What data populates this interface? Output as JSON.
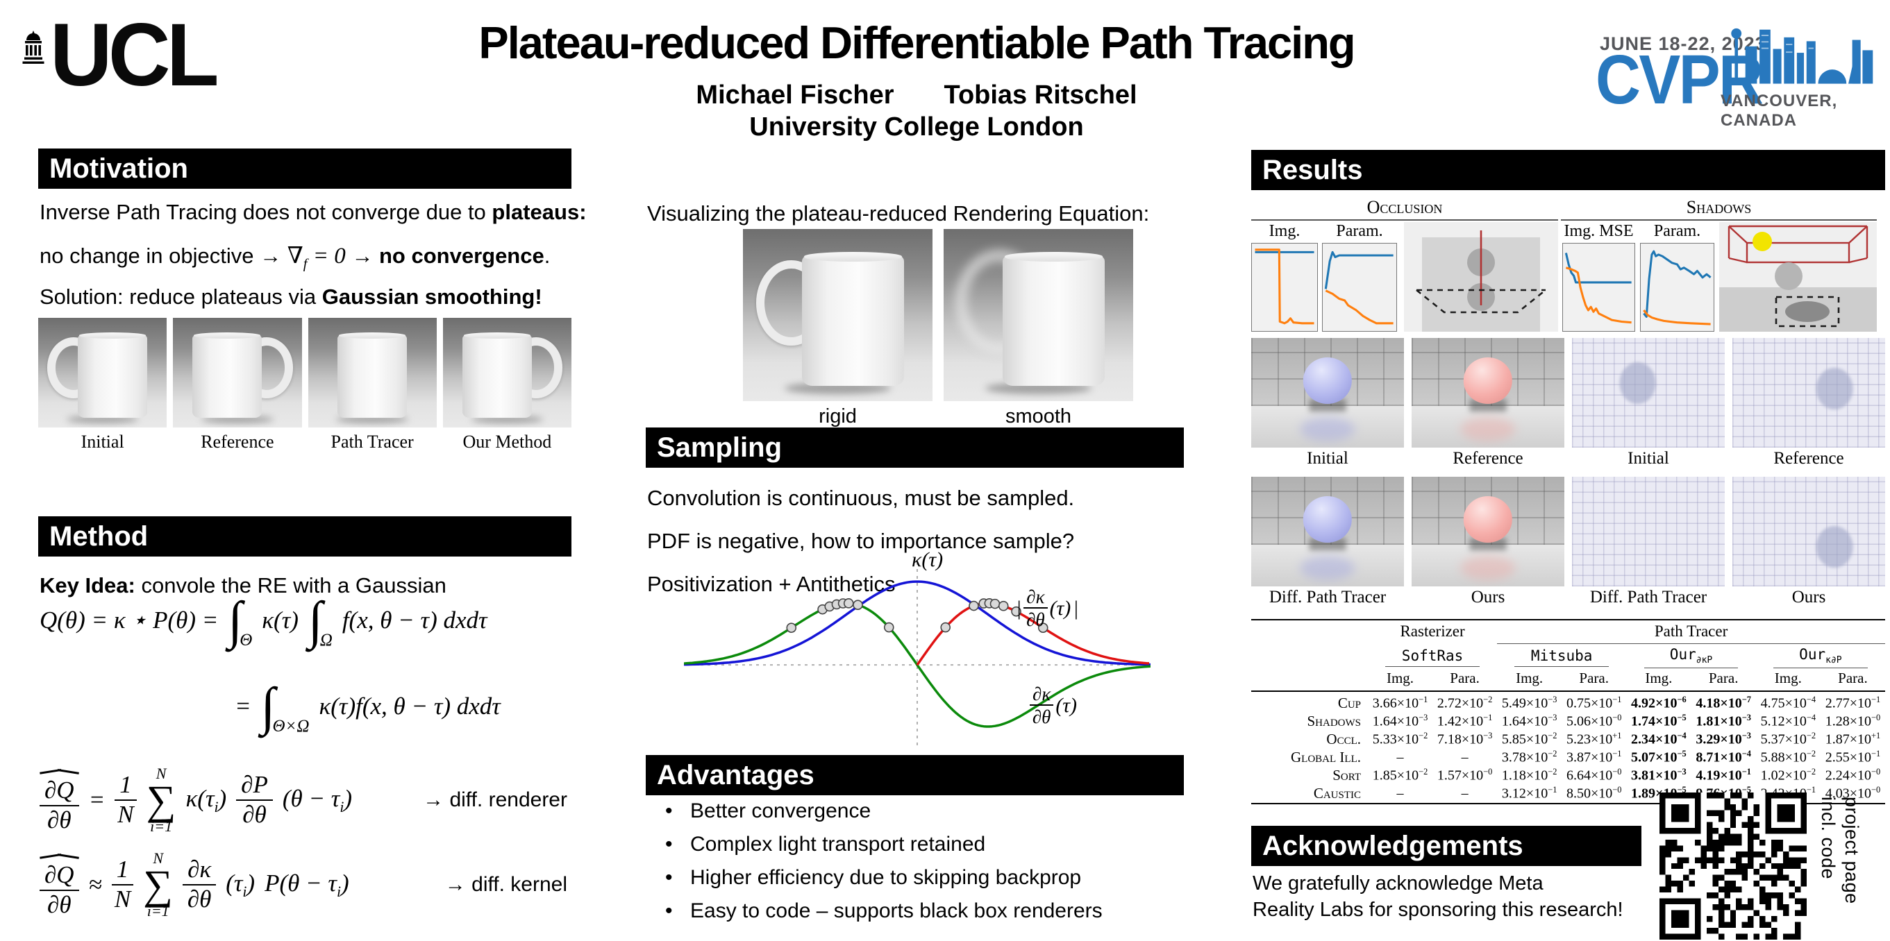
{
  "colors": {
    "cvpr_blue": "#2878be",
    "cvpr_gray": "#55565a",
    "plot_blue": "#1f77b4",
    "plot_orange": "#ff7f0e",
    "curve_blue": "#1414d6",
    "curve_green": "#0b8a0b",
    "curve_red": "#e01212",
    "scene_red": "#b03333",
    "scene_yellow": "#f2e400",
    "ball_blue": "#b4b8ee",
    "ball_pink": "#f6aeaa"
  },
  "header": {
    "ucl_text": "UCL",
    "title": "Plateau-reduced Differentiable Path Tracing",
    "author1": "Michael Fischer",
    "author2": "Tobias Ritschel",
    "affiliation": "University College London",
    "cvpr_dates": "JUNE 18-22, 2023",
    "cvpr_name": "CVPR",
    "cvpr_location": "VANCOUVER, CANADA"
  },
  "motivation": {
    "header": "Motivation",
    "line1": {
      "a": "Inverse Path Tracing does not converge due to ",
      "bold": "plateaus:"
    },
    "line2": {
      "a": "no change in objective → ",
      "math": "∇_{f} = 0",
      "b": " →  ",
      "bold": "no convergence",
      "end": "."
    },
    "line3": {
      "a": "Solution: reduce plateaus via ",
      "bold": "Gaussian smoothing!"
    },
    "figures": [
      {
        "label": "Initial",
        "handle": "left",
        "blur": false
      },
      {
        "label": "Reference",
        "handle": "right",
        "blur": false
      },
      {
        "label": "Path Tracer",
        "handle": "none",
        "blur": false
      },
      {
        "label": "Our Method",
        "handle": "right",
        "blur": false
      }
    ]
  },
  "method": {
    "header": "Method",
    "key_idea_label": "Key Idea:",
    "key_idea_text": " convole the RE with a Gaussian",
    "eq1": {
      "pre": "Q(θ) = κ ⋆ P(θ) =",
      "int1": "∫",
      "int1_sub": "Θ",
      "kernel": "κ(τ)",
      "int2": "∫",
      "int2_sub": "Ω",
      "integrand": "f(x, θ − τ) dxdτ"
    },
    "eq2": {
      "rel": "=",
      "int": "∫",
      "int_sub": "Θ×Ω",
      "integrand": "κ(τ)f(x, θ − τ) dxdτ"
    },
    "eq3": {
      "lhs_num": "∂Q",
      "lhs_den": "∂θ",
      "rel": "=",
      "coef_num": "1",
      "coef_den": "N",
      "sum": "∑",
      "sum_top": "N",
      "sum_bot": "i=1",
      "term1": "κ(τ_{i})",
      "frac_num": "∂P",
      "frac_den": "∂θ",
      "term2": "(θ − τ_{i})",
      "note": "→ diff. renderer"
    },
    "eq4": {
      "lhs_num": "∂Q",
      "lhs_den": "∂θ",
      "rel": "≈",
      "coef_num": "1",
      "coef_den": "N",
      "sum": "∑",
      "sum_top": "N",
      "sum_bot": "i=1",
      "frac_num": "∂κ",
      "frac_den": "∂θ",
      "term1": "(τ_{i})",
      "term2": "P(θ − τ_{i})",
      "note": "→ diff. kernel"
    }
  },
  "middle": {
    "viz_caption": "Visualizing the plateau-reduced Rendering Equation:",
    "figures": [
      {
        "label": "rigid",
        "handle": "left",
        "blur": false
      },
      {
        "label": "smooth",
        "handle": "left",
        "blur": true
      }
    ],
    "sampling_header": "Sampling",
    "sampling_line1": "Convolution is continuous, must be sampled.",
    "sampling_line2": "PDF is negative, how to importance sample?",
    "sampling_line3": "Positivization + Antithetics",
    "plot_labels": {
      "top": "κ(τ)",
      "right_bar_l": "|",
      "right_num": "∂κ",
      "right_den": "∂θ",
      "right_tail": "(τ)",
      "right_bar_r": "|",
      "bottom_num": "∂κ",
      "bottom_den": "∂θ",
      "bottom_tail": "(τ)"
    },
    "advantages_header": "Advantages",
    "advantages": [
      "Better convergence",
      "Complex light transport retained",
      "Higher efficiency due to skipping backprop",
      "Easy to code – supports black box renderers"
    ]
  },
  "results": {
    "header": "Results",
    "image_grid": [
      [
        {
          "kind": "room",
          "ball": "blue",
          "label": "Initial"
        },
        {
          "kind": "room",
          "ball": "pink",
          "label": "Reference"
        },
        {
          "kind": "flat",
          "ellipse": [
            43,
            41
          ],
          "label": "Initial"
        },
        {
          "kind": "flat",
          "ellipse": [
            67,
            46
          ],
          "label": "Reference"
        }
      ],
      [
        {
          "kind": "room",
          "ball": "blue",
          "label": "Diff. Path Tracer"
        },
        {
          "kind": "room",
          "ball": "pink",
          "label": "Ours"
        },
        {
          "kind": "flat",
          "ellipse": null,
          "label": "Diff. Path Tracer"
        },
        {
          "kind": "flat",
          "ellipse": [
            67,
            64
          ],
          "label": "Ours"
        }
      ]
    ],
    "table": {
      "group1": "Rasterizer",
      "group2": "Path Tracer",
      "methods": [
        "SoftRas",
        "Mitsuba",
        "Our_{∂κP}",
        "Our_{κ∂P}"
      ],
      "subcols": [
        "Img.",
        "Para."
      ],
      "bold_value_cols": [
        4,
        5
      ],
      "rows": [
        {
          "label": "Cup",
          "values": [
            "3.66×10^{−1}",
            "2.72×10^{−2}",
            "5.49×10^{−3}",
            "0.75×10^{−1}",
            "4.92×10^{−6}",
            "4.18×10^{−7}",
            "4.75×10^{−4}",
            "2.77×10^{−1}"
          ]
        },
        {
          "label": "Shadows",
          "values": [
            "1.64×10^{−3}",
            "1.42×10^{−1}",
            "1.64×10^{−3}",
            "5.06×10^{−0}",
            "1.74×10^{−5}",
            "1.81×10^{−3}",
            "5.12×10^{−4}",
            "1.28×10^{−0}"
          ]
        },
        {
          "label": "Occl.",
          "values": [
            "5.33×10^{−2}",
            "7.18×10^{−3}",
            "5.85×10^{−2}",
            "5.23×10^{+1}",
            "2.34×10^{−4}",
            "3.29×10^{−3}",
            "5.37×10^{−2}",
            "1.87×10^{+1}"
          ]
        },
        {
          "label": "Global Ill.",
          "values": [
            "–",
            "–",
            "3.78×10^{−2}",
            "3.87×10^{−1}",
            "5.07×10^{−5}",
            "8.71×10^{−4}",
            "5.88×10^{−2}",
            "2.55×10^{−1}"
          ]
        },
        {
          "label": "Sort",
          "values": [
            "1.85×10^{−2}",
            "1.57×10^{−0}",
            "1.18×10^{−2}",
            "6.64×10^{−0}",
            "3.81×10^{−3}",
            "4.19×10^{−1}",
            "1.02×10^{−2}",
            "2.24×10^{−0}"
          ]
        },
        {
          "label": "Caustic",
          "values": [
            "–",
            "–",
            "3.12×10^{−1}",
            "8.50×10^{−0}",
            "1.89×10^{−5}",
            "9.76×10^{−5}",
            "2.42×10^{−1}",
            "4.03×10^{−0}"
          ]
        }
      ]
    }
  },
  "acknowledgements": {
    "header": "Acknowledgements",
    "line1": "We gratefully acknowledge Meta",
    "line2": "Reality Labs for sponsoring this research!",
    "qr_caption_line1": "project page",
    "qr_caption_line2": "incl. code"
  },
  "chart_data": [
    {
      "id": "sampling",
      "type": "line",
      "title": "Positivization + Antithetics sampling kernels",
      "x_range": [
        -3.3,
        3.3
      ],
      "sigma": 1.0,
      "grid": false,
      "legend": "on-curve annotations",
      "curves": [
        {
          "name": "κ(τ)",
          "shape": "gaussian",
          "amp": 1.0,
          "color": "#1414d6"
        },
        {
          "name": "∂κ/∂θ(τ)",
          "shape": "gaussian-derivative",
          "amp": 0.74,
          "color": "#0b8a0b"
        },
        {
          "name": "|∂κ/∂θ(τ)|",
          "shape": "abs-gaussian-derivative",
          "amp": 0.74,
          "color": "#e01212",
          "domain": [
            0,
            3.3
          ]
        }
      ],
      "sample_points": {
        "on_derivative_x": [
          -1.78,
          -1.34,
          -1.24,
          -1.14,
          -1.05,
          -0.97,
          -0.84,
          -0.4
        ],
        "on_abs_x": [
          0.4,
          0.8,
          0.94,
          1.02,
          1.1,
          1.22,
          1.4,
          1.78
        ]
      }
    },
    {
      "id": "occl-img",
      "type": "line",
      "group": "Occlusion",
      "title": "Img. MSE",
      "series": [
        {
          "name": "blue",
          "color": "#1f77b4",
          "pts": [
            [
              0,
              0.07
            ],
            [
              1,
              0.07
            ]
          ]
        },
        {
          "name": "orange",
          "color": "#ff7f0e",
          "pts": [
            [
              0,
              0.04
            ],
            [
              0.41,
              0.04
            ],
            [
              0.42,
              0.92
            ],
            [
              0.5,
              0.94
            ],
            [
              0.55,
              0.92
            ],
            [
              0.6,
              0.88
            ],
            [
              0.65,
              0.93
            ],
            [
              0.8,
              0.94
            ],
            [
              1,
              0.94
            ]
          ]
        }
      ]
    },
    {
      "id": "occl-param",
      "type": "line",
      "group": "Occlusion",
      "title": "Param. MSE",
      "series": [
        {
          "name": "blue",
          "color": "#1f77b4",
          "pts": [
            [
              0,
              0.52
            ],
            [
              0.06,
              0.18
            ],
            [
              0.1,
              0.07
            ],
            [
              0.14,
              0.13
            ],
            [
              0.2,
              0.11
            ],
            [
              1,
              0.11
            ]
          ]
        },
        {
          "name": "orange",
          "color": "#ff7f0e",
          "pts": [
            [
              0,
              0.54
            ],
            [
              0.1,
              0.58
            ],
            [
              0.2,
              0.64
            ],
            [
              0.28,
              0.66
            ],
            [
              0.33,
              0.72
            ],
            [
              0.45,
              0.78
            ],
            [
              0.55,
              0.85
            ],
            [
              0.65,
              0.9
            ],
            [
              0.75,
              0.94
            ],
            [
              1,
              0.94
            ]
          ]
        }
      ]
    },
    {
      "id": "shadows-img",
      "type": "line",
      "group": "Shadows",
      "title": "Img. MSE",
      "series": [
        {
          "name": "blue",
          "color": "#1f77b4",
          "pts": [
            [
              0,
              0.08
            ],
            [
              0.04,
              0.22
            ],
            [
              0.08,
              0.32
            ],
            [
              0.12,
              0.36
            ],
            [
              0.15,
              0.44
            ],
            [
              0.22,
              0.44
            ],
            [
              1,
              0.44
            ]
          ]
        },
        {
          "name": "orange",
          "color": "#ff7f0e",
          "pts": [
            [
              0,
              0.26
            ],
            [
              0.08,
              0.28
            ],
            [
              0.14,
              0.3
            ],
            [
              0.18,
              0.32
            ],
            [
              0.22,
              0.5
            ],
            [
              0.26,
              0.62
            ],
            [
              0.3,
              0.72
            ],
            [
              0.34,
              0.78
            ],
            [
              0.38,
              0.74
            ],
            [
              0.42,
              0.8
            ],
            [
              0.46,
              0.76
            ],
            [
              0.5,
              0.82
            ],
            [
              0.6,
              0.86
            ],
            [
              0.7,
              0.9
            ],
            [
              0.85,
              0.92
            ],
            [
              1,
              0.93
            ]
          ]
        }
      ]
    },
    {
      "id": "shadows-param",
      "type": "line",
      "group": "Shadows",
      "title": "Param. MSE",
      "series": [
        {
          "name": "blue",
          "color": "#1f77b4",
          "pts": [
            [
              0,
              0.82
            ],
            [
              0.04,
              0.86
            ],
            [
              0.08,
              0.4
            ],
            [
              0.12,
              0.1
            ],
            [
              0.15,
              0.06
            ],
            [
              0.18,
              0.12
            ],
            [
              0.22,
              0.1
            ],
            [
              0.28,
              0.12
            ],
            [
              0.35,
              0.16
            ],
            [
              0.42,
              0.2
            ],
            [
              0.5,
              0.22
            ],
            [
              0.55,
              0.28
            ],
            [
              0.6,
              0.26
            ],
            [
              0.68,
              0.3
            ],
            [
              0.75,
              0.34
            ],
            [
              0.8,
              0.3
            ],
            [
              0.88,
              0.38
            ],
            [
              0.94,
              0.34
            ],
            [
              1,
              0.38
            ]
          ]
        },
        {
          "name": "orange",
          "color": "#ff7f0e",
          "pts": [
            [
              0,
              0.78
            ],
            [
              0.06,
              0.84
            ],
            [
              0.12,
              0.87
            ],
            [
              0.2,
              0.89
            ],
            [
              0.3,
              0.91
            ],
            [
              0.5,
              0.93
            ],
            [
              0.7,
              0.94
            ],
            [
              1,
              0.95
            ]
          ]
        }
      ]
    }
  ]
}
